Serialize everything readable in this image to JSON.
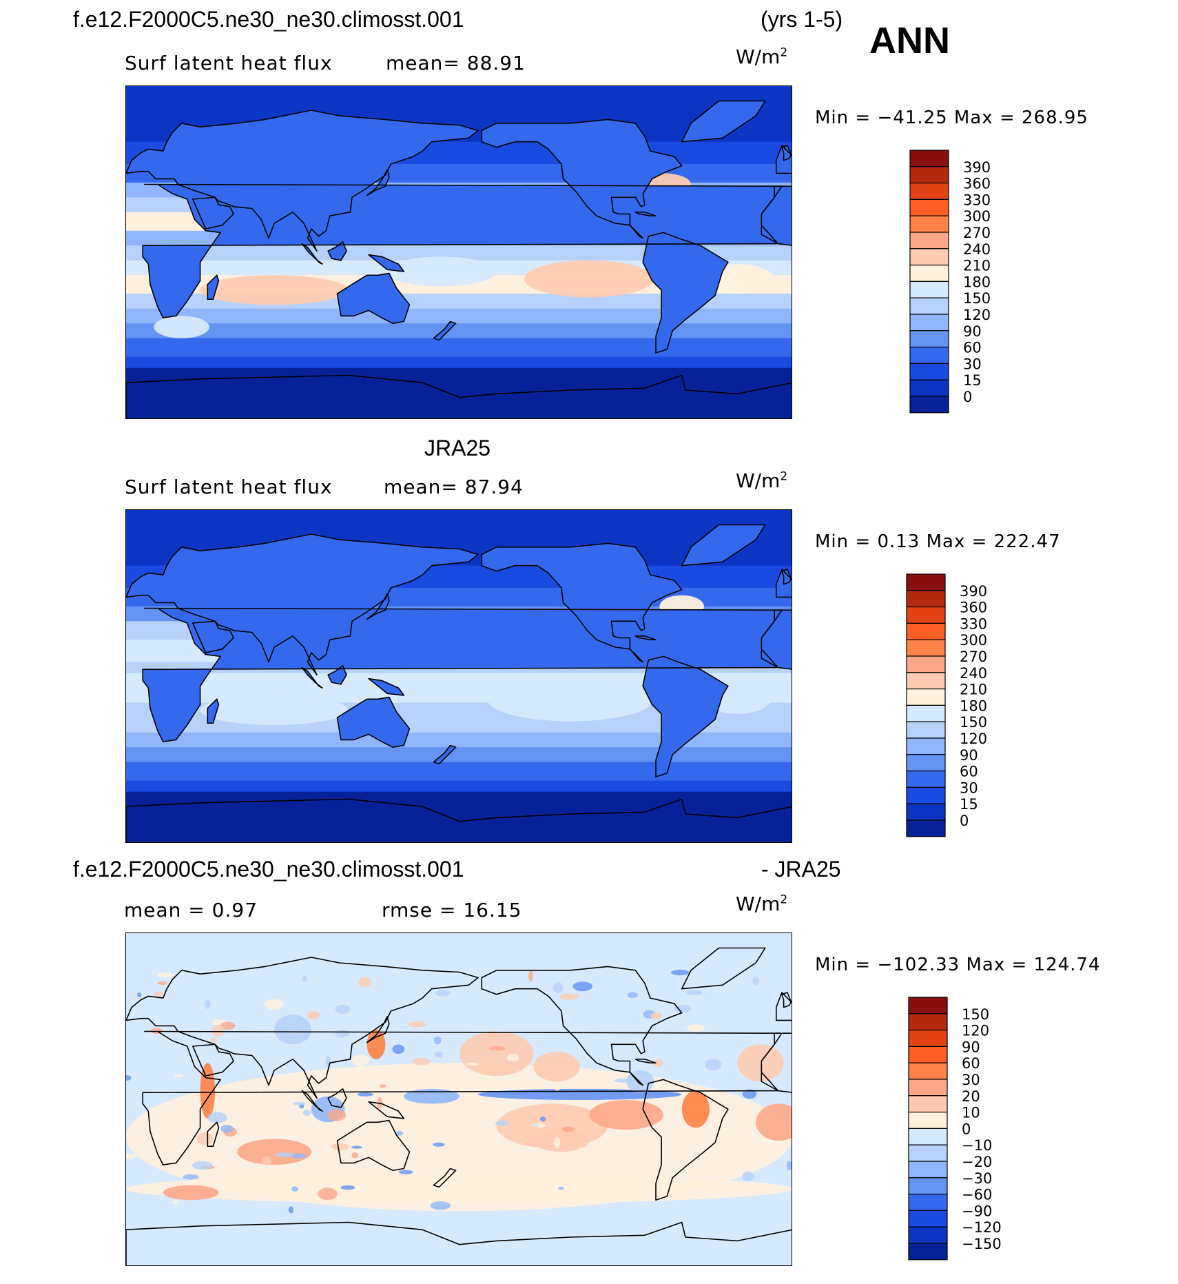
{
  "header": {
    "case_name": "f.e12.F2000C5.ne30_ne30.climosst.001",
    "years": "(yrs 1-5)",
    "season": "ANN"
  },
  "panels": [
    {
      "title": "",
      "variable": "Surf latent heat flux",
      "stat_text": "mean=   88.91",
      "units": "W/m",
      "units_exp": "2",
      "minmax": "Min  =  −41.25  Max  =  268.95",
      "colorbar": {
        "labels": [
          "390",
          "360",
          "330",
          "300",
          "270",
          "240",
          "210",
          "180",
          "150",
          "120",
          "90",
          "60",
          "30",
          "15",
          "0"
        ],
        "colors": [
          "#8a0f0f",
          "#b52a0e",
          "#e34417",
          "#ff5e24",
          "#ff8246",
          "#fda789",
          "#ffcbb0",
          "#fff1de",
          "#d7e9fd",
          "#b6d2fb",
          "#8fb6fb",
          "#6394f4",
          "#3569ed",
          "#1a4be0",
          "#0d35c4",
          "#062298"
        ]
      }
    },
    {
      "title": "JRA25",
      "variable": "Surf latent heat flux",
      "stat_text": "mean=   87.94",
      "units": "W/m",
      "units_exp": "2",
      "minmax": "Min  =     0.13  Max  =  222.47",
      "colorbar": {
        "labels": [
          "390",
          "360",
          "330",
          "300",
          "270",
          "240",
          "210",
          "180",
          "150",
          "120",
          "90",
          "60",
          "30",
          "15",
          "0"
        ],
        "colors": [
          "#8a0f0f",
          "#b52a0e",
          "#e34417",
          "#ff5e24",
          "#ff8246",
          "#fda789",
          "#ffcbb0",
          "#fff1de",
          "#d7e9fd",
          "#b6d2fb",
          "#8fb6fb",
          "#6394f4",
          "#3569ed",
          "#1a4be0",
          "#0d35c4",
          "#062298"
        ]
      }
    },
    {
      "title_left": "f.e12.F2000C5.ne30_ne30.climosst.001",
      "title_right": "- JRA25",
      "stat_mean": "mean  =     0.97",
      "stat_rmse": "rmse  =    16.15",
      "units": "W/m",
      "units_exp": "2",
      "minmax": "Min  =  −102.33  Max  =  124.74",
      "colorbar": {
        "labels": [
          "150",
          "120",
          "90",
          "60",
          "30",
          "20",
          "10",
          "0",
          "−10",
          "−20",
          "−30",
          "−60",
          "−90",
          "−120",
          "−150"
        ],
        "colors": [
          "#8a0f0f",
          "#b52a0e",
          "#e34417",
          "#ff5e24",
          "#ff8246",
          "#fda789",
          "#ffcbb0",
          "#fff1de",
          "#d7e9fd",
          "#b6d2fb",
          "#8fb6fb",
          "#6394f4",
          "#3569ed",
          "#1a4be0",
          "#0d35c4",
          "#062298"
        ]
      }
    }
  ]
}
